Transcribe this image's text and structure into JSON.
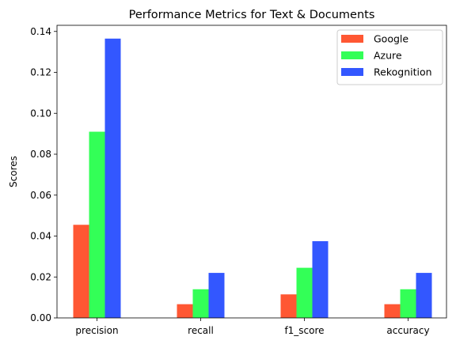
{
  "chart_data": {
    "type": "bar",
    "title": "Performance Metrics for Text & Documents",
    "xlabel": "",
    "ylabel": "Scores",
    "categories": [
      "precision",
      "recall",
      "f1_score",
      "accuracy"
    ],
    "series": [
      {
        "name": "Google",
        "color": "#FF5733",
        "values": [
          0.0455,
          0.0067,
          0.0115,
          0.0067
        ]
      },
      {
        "name": "Azure",
        "color": "#33FF57",
        "values": [
          0.091,
          0.014,
          0.0245,
          0.014
        ]
      },
      {
        "name": "Rekognition",
        "color": "#3357FF",
        "values": [
          0.1365,
          0.022,
          0.0375,
          0.022
        ]
      }
    ],
    "ylim": [
      0,
      0.143
    ],
    "yticks": [
      "0.00",
      "0.02",
      "0.04",
      "0.06",
      "0.08",
      "0.10",
      "0.12",
      "0.14"
    ],
    "grid": false,
    "legend_position": "top-right"
  }
}
